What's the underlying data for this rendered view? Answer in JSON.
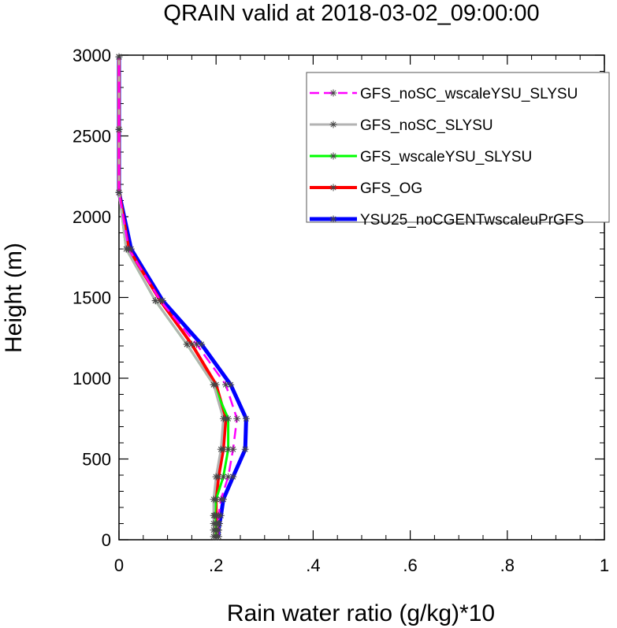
{
  "chart_data": {
    "type": "line",
    "title": "QRAIN valid at 2018-03-02_09:00:00",
    "xlabel": "Rain water ratio (g/kg)*10",
    "ylabel": "Height (m)",
    "xlim": [
      0,
      1
    ],
    "ylim": [
      0,
      3000
    ],
    "x_ticks": [
      "0",
      ".2",
      ".4",
      ".6",
      ".8",
      "1"
    ],
    "y_ticks": [
      "0",
      "500",
      "1000",
      "1500",
      "2000",
      "2500",
      "3000"
    ],
    "grid": false,
    "legend_position": "top-right",
    "marker": "asterisk",
    "heights": [
      20,
      60,
      100,
      150,
      250,
      390,
      560,
      750,
      960,
      1210,
      1480,
      1800,
      2150,
      2540,
      2990
    ],
    "series": [
      {
        "name": "GFS_noSC_wscaleYSU_SLYSU",
        "color": "#ff00ff",
        "dash": "dashed",
        "x": [
          0.205,
          0.205,
          0.205,
          0.205,
          0.21,
          0.225,
          0.235,
          0.243,
          0.22,
          0.16,
          0.085,
          0.02,
          0.0,
          0.0,
          0.0
        ]
      },
      {
        "name": "GFS_noSC_SLYSU",
        "color": "#b3b3b3",
        "dash": "solid",
        "x": [
          0.195,
          0.195,
          0.195,
          0.195,
          0.195,
          0.2,
          0.21,
          0.215,
          0.195,
          0.14,
          0.075,
          0.015,
          0.0,
          0.0,
          0.0
        ]
      },
      {
        "name": "GFS_wscaleYSU_SLYSU",
        "color": "#00ff00",
        "dash": "solid",
        "x": [
          0.2,
          0.2,
          0.2,
          0.197,
          0.2,
          0.215,
          0.225,
          0.225,
          0.195,
          0.14,
          0.075,
          0.015,
          0.0,
          0.0,
          0.0
        ]
      },
      {
        "name": "GFS_OG",
        "color": "#ff0000",
        "dash": "solid",
        "x": [
          0.2,
          0.2,
          0.2,
          0.2,
          0.2,
          0.205,
          0.215,
          0.22,
          0.2,
          0.15,
          0.085,
          0.02,
          0.0,
          0.0,
          0.0
        ]
      },
      {
        "name": "YSU25_noCGENTwscaleuPrGFS",
        "color": "#0000ff",
        "dash": "solid",
        "x": [
          0.205,
          0.205,
          0.207,
          0.21,
          0.215,
          0.235,
          0.26,
          0.262,
          0.23,
          0.17,
          0.09,
          0.025,
          0.0,
          0.0,
          0.0
        ]
      }
    ]
  }
}
